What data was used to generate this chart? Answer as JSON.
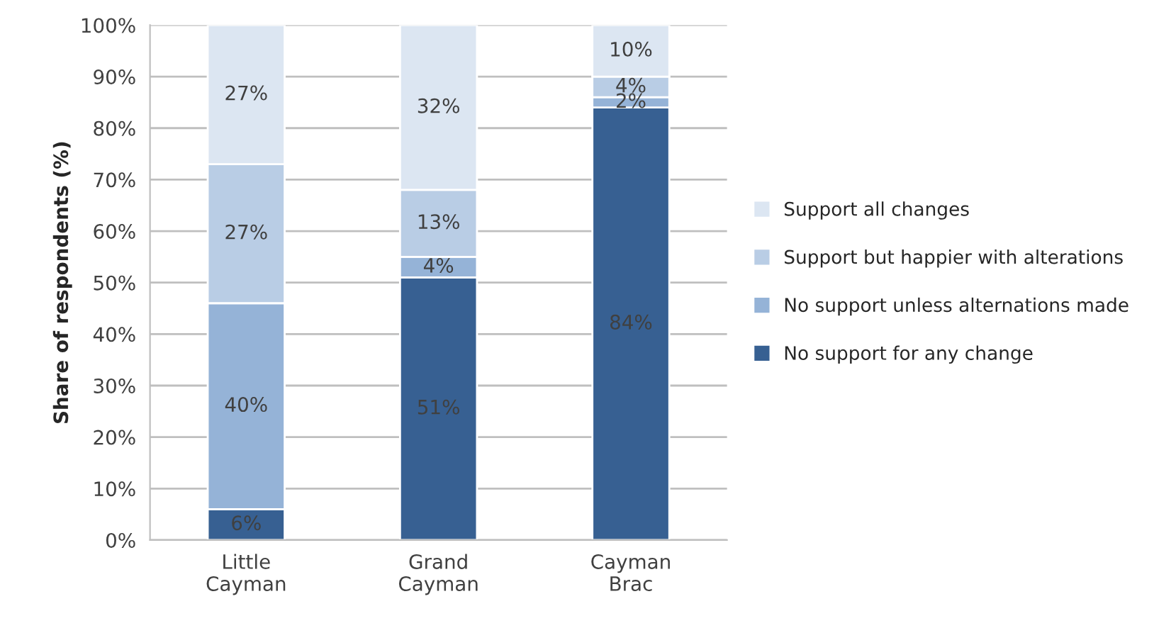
{
  "chart_data": {
    "type": "bar",
    "stacked": true,
    "ylabel": "Share of respondents (%)",
    "categories": [
      "Little\nCayman",
      "Grand\nCayman",
      "Cayman\nBrac"
    ],
    "series": [
      {
        "name": "No support for any change",
        "color": "#376092",
        "values": [
          6,
          51,
          84
        ],
        "value_labels": [
          "6%",
          "51%",
          "84%"
        ]
      },
      {
        "name": "No support unless alternations made",
        "color": "#95b3d7",
        "values": [
          40,
          4,
          2
        ],
        "value_labels": [
          "40%",
          "4%",
          "2%"
        ]
      },
      {
        "name": "Support but happier with alterations",
        "color": "#b9cde5",
        "values": [
          27,
          13,
          4
        ],
        "value_labels": [
          "27%",
          "13%",
          "4%"
        ]
      },
      {
        "name": "Support all changes",
        "color": "#dce6f2",
        "values": [
          27,
          32,
          10
        ],
        "value_labels": [
          "27%",
          "32%",
          "10%"
        ]
      }
    ],
    "ylim": [
      0,
      100
    ],
    "yticks": [
      {
        "value": 0,
        "label": "0%"
      },
      {
        "value": 10,
        "label": "10%"
      },
      {
        "value": 20,
        "label": "20%"
      },
      {
        "value": 30,
        "label": "30%"
      },
      {
        "value": 40,
        "label": "40%"
      },
      {
        "value": 50,
        "label": "50%"
      },
      {
        "value": 60,
        "label": "60%"
      },
      {
        "value": 70,
        "label": "70%"
      },
      {
        "value": 80,
        "label": "80%"
      },
      {
        "value": 90,
        "label": "90%"
      },
      {
        "value": 100,
        "label": "100%"
      }
    ],
    "grid": "y",
    "legend": "right"
  }
}
